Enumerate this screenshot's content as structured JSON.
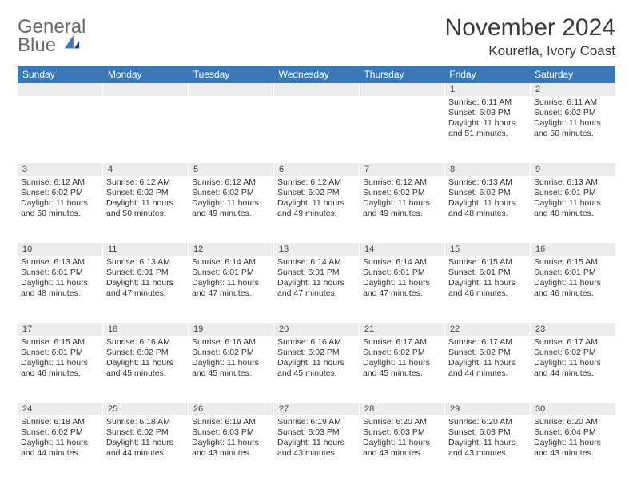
{
  "colors": {
    "header_bg": "#3a78b8",
    "header_text": "#ffffff",
    "daynum_bg": "#ececec",
    "page_bg": "#ffffff",
    "title_color": "#3a3a3a",
    "logo_gray": "#6a6a6a",
    "logo_blue": "#3a78b8",
    "body_text": "#333333"
  },
  "fonts": {
    "title_size_pt": 22,
    "subtitle_size_pt": 13,
    "dayhead_size_pt": 9,
    "cell_size_pt": 8
  },
  "logo": {
    "line1": "General",
    "line2": "Blue"
  },
  "title": "November 2024",
  "subtitle": "Kourefla, Ivory Coast",
  "day_names": [
    "Sunday",
    "Monday",
    "Tuesday",
    "Wednesday",
    "Thursday",
    "Friday",
    "Saturday"
  ],
  "weeks": [
    [
      {
        "n": "",
        "sr": "",
        "ss": "",
        "dl": ""
      },
      {
        "n": "",
        "sr": "",
        "ss": "",
        "dl": ""
      },
      {
        "n": "",
        "sr": "",
        "ss": "",
        "dl": ""
      },
      {
        "n": "",
        "sr": "",
        "ss": "",
        "dl": ""
      },
      {
        "n": "",
        "sr": "",
        "ss": "",
        "dl": ""
      },
      {
        "n": "1",
        "sr": "Sunrise: 6:11 AM",
        "ss": "Sunset: 6:03 PM",
        "dl": "Daylight: 11 hours and 51 minutes."
      },
      {
        "n": "2",
        "sr": "Sunrise: 6:11 AM",
        "ss": "Sunset: 6:02 PM",
        "dl": "Daylight: 11 hours and 50 minutes."
      }
    ],
    [
      {
        "n": "3",
        "sr": "Sunrise: 6:12 AM",
        "ss": "Sunset: 6:02 PM",
        "dl": "Daylight: 11 hours and 50 minutes."
      },
      {
        "n": "4",
        "sr": "Sunrise: 6:12 AM",
        "ss": "Sunset: 6:02 PM",
        "dl": "Daylight: 11 hours and 50 minutes."
      },
      {
        "n": "5",
        "sr": "Sunrise: 6:12 AM",
        "ss": "Sunset: 6:02 PM",
        "dl": "Daylight: 11 hours and 49 minutes."
      },
      {
        "n": "6",
        "sr": "Sunrise: 6:12 AM",
        "ss": "Sunset: 6:02 PM",
        "dl": "Daylight: 11 hours and 49 minutes."
      },
      {
        "n": "7",
        "sr": "Sunrise: 6:12 AM",
        "ss": "Sunset: 6:02 PM",
        "dl": "Daylight: 11 hours and 49 minutes."
      },
      {
        "n": "8",
        "sr": "Sunrise: 6:13 AM",
        "ss": "Sunset: 6:02 PM",
        "dl": "Daylight: 11 hours and 48 minutes."
      },
      {
        "n": "9",
        "sr": "Sunrise: 6:13 AM",
        "ss": "Sunset: 6:01 PM",
        "dl": "Daylight: 11 hours and 48 minutes."
      }
    ],
    [
      {
        "n": "10",
        "sr": "Sunrise: 6:13 AM",
        "ss": "Sunset: 6:01 PM",
        "dl": "Daylight: 11 hours and 48 minutes."
      },
      {
        "n": "11",
        "sr": "Sunrise: 6:13 AM",
        "ss": "Sunset: 6:01 PM",
        "dl": "Daylight: 11 hours and 47 minutes."
      },
      {
        "n": "12",
        "sr": "Sunrise: 6:14 AM",
        "ss": "Sunset: 6:01 PM",
        "dl": "Daylight: 11 hours and 47 minutes."
      },
      {
        "n": "13",
        "sr": "Sunrise: 6:14 AM",
        "ss": "Sunset: 6:01 PM",
        "dl": "Daylight: 11 hours and 47 minutes."
      },
      {
        "n": "14",
        "sr": "Sunrise: 6:14 AM",
        "ss": "Sunset: 6:01 PM",
        "dl": "Daylight: 11 hours and 47 minutes."
      },
      {
        "n": "15",
        "sr": "Sunrise: 6:15 AM",
        "ss": "Sunset: 6:01 PM",
        "dl": "Daylight: 11 hours and 46 minutes."
      },
      {
        "n": "16",
        "sr": "Sunrise: 6:15 AM",
        "ss": "Sunset: 6:01 PM",
        "dl": "Daylight: 11 hours and 46 minutes."
      }
    ],
    [
      {
        "n": "17",
        "sr": "Sunrise: 6:15 AM",
        "ss": "Sunset: 6:01 PM",
        "dl": "Daylight: 11 hours and 46 minutes."
      },
      {
        "n": "18",
        "sr": "Sunrise: 6:16 AM",
        "ss": "Sunset: 6:02 PM",
        "dl": "Daylight: 11 hours and 45 minutes."
      },
      {
        "n": "19",
        "sr": "Sunrise: 6:16 AM",
        "ss": "Sunset: 6:02 PM",
        "dl": "Daylight: 11 hours and 45 minutes."
      },
      {
        "n": "20",
        "sr": "Sunrise: 6:16 AM",
        "ss": "Sunset: 6:02 PM",
        "dl": "Daylight: 11 hours and 45 minutes."
      },
      {
        "n": "21",
        "sr": "Sunrise: 6:17 AM",
        "ss": "Sunset: 6:02 PM",
        "dl": "Daylight: 11 hours and 45 minutes."
      },
      {
        "n": "22",
        "sr": "Sunrise: 6:17 AM",
        "ss": "Sunset: 6:02 PM",
        "dl": "Daylight: 11 hours and 44 minutes."
      },
      {
        "n": "23",
        "sr": "Sunrise: 6:17 AM",
        "ss": "Sunset: 6:02 PM",
        "dl": "Daylight: 11 hours and 44 minutes."
      }
    ],
    [
      {
        "n": "24",
        "sr": "Sunrise: 6:18 AM",
        "ss": "Sunset: 6:02 PM",
        "dl": "Daylight: 11 hours and 44 minutes."
      },
      {
        "n": "25",
        "sr": "Sunrise: 6:18 AM",
        "ss": "Sunset: 6:02 PM",
        "dl": "Daylight: 11 hours and 44 minutes."
      },
      {
        "n": "26",
        "sr": "Sunrise: 6:19 AM",
        "ss": "Sunset: 6:03 PM",
        "dl": "Daylight: 11 hours and 43 minutes."
      },
      {
        "n": "27",
        "sr": "Sunrise: 6:19 AM",
        "ss": "Sunset: 6:03 PM",
        "dl": "Daylight: 11 hours and 43 minutes."
      },
      {
        "n": "28",
        "sr": "Sunrise: 6:20 AM",
        "ss": "Sunset: 6:03 PM",
        "dl": "Daylight: 11 hours and 43 minutes."
      },
      {
        "n": "29",
        "sr": "Sunrise: 6:20 AM",
        "ss": "Sunset: 6:03 PM",
        "dl": "Daylight: 11 hours and 43 minutes."
      },
      {
        "n": "30",
        "sr": "Sunrise: 6:20 AM",
        "ss": "Sunset: 6:04 PM",
        "dl": "Daylight: 11 hours and 43 minutes."
      }
    ]
  ]
}
